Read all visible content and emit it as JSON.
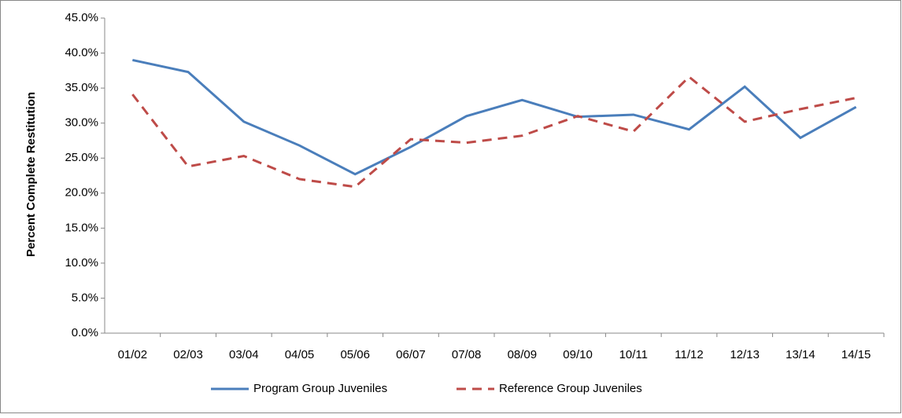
{
  "chart_data": {
    "type": "line",
    "y_label": "Percent Complete Restitution",
    "categories": [
      "01/02",
      "02/03",
      "03/04",
      "04/05",
      "05/06",
      "06/07",
      "07/08",
      "08/09",
      "09/10",
      "10/11",
      "11/12",
      "12/13",
      "13/14",
      "14/15"
    ],
    "series": [
      {
        "name": "Program Group Juveniles",
        "color": "#4a7ebb",
        "dash": "solid",
        "values": [
          39.0,
          37.3,
          30.2,
          26.8,
          22.7,
          26.6,
          31.0,
          33.3,
          30.9,
          31.2,
          29.1,
          35.2,
          27.9,
          32.3
        ]
      },
      {
        "name": "Reference Group Juveniles",
        "color": "#be4b48",
        "dash": "dashed",
        "values": [
          34.1,
          23.8,
          25.3,
          22.0,
          20.9,
          27.7,
          27.2,
          28.2,
          31.0,
          28.8,
          36.6,
          30.2,
          32.0,
          33.6
        ]
      }
    ],
    "ylim": [
      0,
      45
    ],
    "yticks": [
      {
        "value": 0,
        "label": "0.0%"
      },
      {
        "value": 5,
        "label": "5.0%"
      },
      {
        "value": 10,
        "label": "10.0%"
      },
      {
        "value": 15,
        "label": "15.0%"
      },
      {
        "value": 20,
        "label": "20.0%"
      },
      {
        "value": 25,
        "label": "25.0%"
      },
      {
        "value": 30,
        "label": "30.0%"
      },
      {
        "value": 35,
        "label": "35.0%"
      },
      {
        "value": 40,
        "label": "40.0%"
      },
      {
        "value": 45,
        "label": "45.0%"
      }
    ],
    "grid": false,
    "legend": "bottom"
  }
}
